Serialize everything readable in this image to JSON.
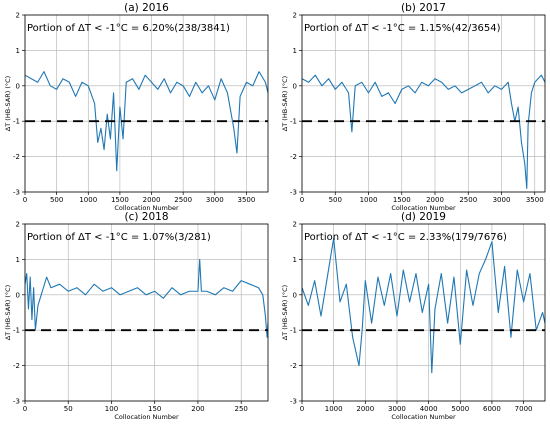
{
  "chart_data": [
    {
      "type": "line",
      "title": "(a) 2016",
      "annotation": "Portion of ΔT < -1°C  = 6.20%(238/3841)",
      "xlabel": "Collocation Number",
      "ylabel": "ΔT (HB-SAR) (°C)",
      "xlim": [
        0,
        3841
      ],
      "ylim": [
        -3,
        2
      ],
      "xticks": [
        0,
        500,
        1000,
        1500,
        2000,
        2500,
        3000,
        3500
      ],
      "yticks": [
        -3,
        -2,
        -1,
        0,
        1,
        2
      ],
      "threshold": -1,
      "grid": true,
      "line_color": "#1f77b4",
      "series": [
        {
          "x": [
            0,
            100,
            200,
            300,
            400,
            500,
            600,
            700,
            800,
            900,
            1000,
            1100,
            1150,
            1200,
            1250,
            1300,
            1350,
            1400,
            1450,
            1500,
            1550,
            1600,
            1700,
            1800,
            1900,
            2000,
            2100,
            2200,
            2300,
            2400,
            2500,
            2600,
            2700,
            2800,
            2900,
            3000,
            3100,
            3200,
            3300,
            3350,
            3400,
            3500,
            3600,
            3700,
            3800,
            3841
          ],
          "y": [
            0.3,
            0.2,
            0.1,
            0.4,
            0.0,
            -0.1,
            0.2,
            0.1,
            -0.3,
            0.1,
            0.0,
            -0.5,
            -1.6,
            -1.2,
            -1.8,
            -0.8,
            -1.5,
            -0.2,
            -2.4,
            -0.6,
            -1.5,
            0.1,
            0.2,
            -0.1,
            0.3,
            0.1,
            -0.1,
            0.2,
            -0.2,
            0.1,
            0.0,
            -0.3,
            0.1,
            -0.2,
            0.0,
            -0.4,
            0.2,
            -0.2,
            -1.2,
            -1.9,
            -0.3,
            0.1,
            0.0,
            0.4,
            0.1,
            -0.2
          ]
        }
      ]
    },
    {
      "type": "line",
      "title": "(b) 2017",
      "annotation": "Portion of ΔT < -1°C  = 1.15%(42/3654)",
      "xlabel": "Collocation Number",
      "ylabel": "ΔT (HB-SAR) (°C)",
      "xlim": [
        0,
        3654
      ],
      "ylim": [
        -3,
        2
      ],
      "xticks": [
        0,
        500,
        1000,
        1500,
        2000,
        2500,
        3000,
        3500
      ],
      "yticks": [
        -3,
        -2,
        -1,
        0,
        1,
        2
      ],
      "threshold": -1,
      "grid": true,
      "line_color": "#1f77b4",
      "series": [
        {
          "x": [
            0,
            100,
            200,
            300,
            400,
            500,
            600,
            700,
            750,
            800,
            900,
            1000,
            1100,
            1200,
            1300,
            1400,
            1500,
            1600,
            1700,
            1800,
            1900,
            2000,
            2100,
            2200,
            2300,
            2400,
            2500,
            2600,
            2700,
            2800,
            2900,
            3000,
            3100,
            3150,
            3200,
            3250,
            3300,
            3350,
            3380,
            3400,
            3450,
            3500,
            3600,
            3654
          ],
          "y": [
            0.2,
            0.1,
            0.3,
            0.0,
            0.2,
            -0.1,
            0.1,
            -0.2,
            -1.3,
            0.0,
            0.1,
            -0.2,
            0.1,
            -0.3,
            -0.2,
            -0.5,
            -0.1,
            0.0,
            -0.2,
            0.1,
            0.0,
            0.2,
            0.1,
            -0.1,
            0.0,
            -0.2,
            -0.1,
            0.0,
            0.1,
            -0.2,
            0.0,
            -0.1,
            0.1,
            -0.5,
            -1.0,
            -0.6,
            -1.6,
            -2.2,
            -2.9,
            -1.1,
            -0.2,
            0.1,
            0.3,
            0.1
          ]
        }
      ]
    },
    {
      "type": "line",
      "title": "(c) 2018",
      "annotation": "Portion of ΔT < -1°C  = 1.07%(3/281)",
      "xlabel": "Collocation Number",
      "ylabel": "ΔT (HB-SAR) (°C)",
      "xlim": [
        0,
        281
      ],
      "ylim": [
        -3,
        2
      ],
      "xticks": [
        0,
        50,
        100,
        150,
        200,
        250
      ],
      "yticks": [
        -3,
        -2,
        -1,
        0,
        1,
        2
      ],
      "threshold": -1,
      "grid": true,
      "line_color": "#1f77b4",
      "series": [
        {
          "x": [
            0,
            2,
            4,
            6,
            8,
            10,
            12,
            15,
            20,
            25,
            30,
            40,
            50,
            60,
            70,
            80,
            90,
            100,
            110,
            120,
            130,
            140,
            150,
            160,
            170,
            180,
            190,
            200,
            202,
            204,
            210,
            220,
            230,
            240,
            250,
            260,
            270,
            275,
            278,
            280,
            281
          ],
          "y": [
            0.3,
            0.6,
            -0.4,
            0.5,
            -0.7,
            0.2,
            -1.0,
            -0.3,
            0.1,
            0.5,
            0.2,
            0.3,
            0.1,
            0.2,
            0.0,
            0.3,
            0.1,
            0.2,
            0.0,
            0.1,
            0.2,
            0.0,
            0.1,
            -0.1,
            0.2,
            0.0,
            0.1,
            0.1,
            1.0,
            0.1,
            0.1,
            0.0,
            0.2,
            0.1,
            0.4,
            0.3,
            0.2,
            0.0,
            -0.6,
            -1.2,
            -0.8
          ]
        }
      ]
    },
    {
      "type": "line",
      "title": "(d) 2019",
      "annotation": "Portion of ΔT < -1°C  = 2.33%(179/7676)",
      "xlabel": "Collocation Number",
      "ylabel": "ΔT (HB-SAR) (°C)",
      "xlim": [
        0,
        7676
      ],
      "ylim": [
        -3,
        2
      ],
      "xticks": [
        0,
        1000,
        2000,
        3000,
        4000,
        5000,
        6000,
        7000
      ],
      "yticks": [
        -3,
        -2,
        -1,
        0,
        1,
        2
      ],
      "threshold": -1,
      "grid": true,
      "line_color": "#1f77b4",
      "series": [
        {
          "x": [
            0,
            200,
            400,
            600,
            800,
            1000,
            1200,
            1400,
            1600,
            1800,
            1900,
            2000,
            2200,
            2400,
            2600,
            2800,
            3000,
            3200,
            3400,
            3600,
            3800,
            4000,
            4100,
            4200,
            4400,
            4600,
            4800,
            5000,
            5200,
            5400,
            5600,
            5800,
            6000,
            6200,
            6400,
            6600,
            6800,
            7000,
            7200,
            7400,
            7600,
            7676
          ],
          "y": [
            0.2,
            -0.3,
            0.4,
            -0.6,
            0.5,
            1.6,
            -0.2,
            0.3,
            -1.2,
            -2.0,
            -1.0,
            0.4,
            -0.8,
            0.5,
            -0.3,
            0.6,
            -0.6,
            0.7,
            -0.2,
            0.6,
            -0.5,
            0.3,
            -2.2,
            -0.4,
            0.6,
            -0.8,
            0.5,
            -1.4,
            0.7,
            -0.3,
            0.6,
            1.0,
            1.5,
            -0.5,
            0.8,
            -1.2,
            0.7,
            -0.2,
            0.6,
            -1.0,
            -0.5,
            -0.8
          ]
        }
      ]
    }
  ]
}
